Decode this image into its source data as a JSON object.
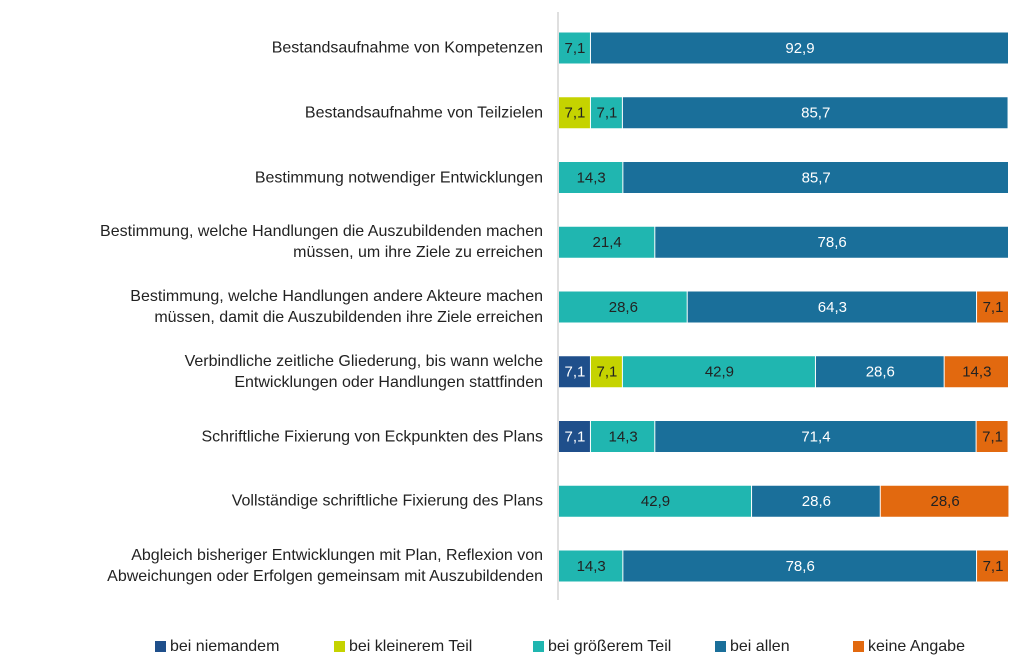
{
  "chart_data": {
    "type": "stacked-bar-horizontal",
    "categories": [
      "Bestandsaufnahme von Kompetenzen",
      "Bestandsaufnahme von Teilzielen",
      "Bestimmung notwendiger Entwicklungen",
      "Bestimmung, welche Handlungen die Auszubildenden machen\nmüssen, um ihre Ziele zu erreichen",
      "Bestimmung, welche Handlungen andere Akteure machen\nmüssen, damit die Auszubildenden ihre Ziele erreichen",
      "Verbindliche zeitliche Gliederung, bis wann welche\nEntwicklungen oder Handlungen stattfinden",
      "Schriftliche Fixierung von Eckpunkten des Plans",
      "Vollständige schriftliche Fixierung des Plans",
      "Abgleich bisheriger Entwicklungen mit Plan, Reflexion von\nAbweichungen oder Erfolgen gemeinsam mit Auszubildenden"
    ],
    "series": [
      {
        "name": "bei niemandem",
        "color": "#1f4f8b",
        "values": [
          null,
          null,
          null,
          null,
          null,
          7.1,
          7.1,
          null,
          null
        ],
        "value_labels": [
          null,
          null,
          null,
          null,
          null,
          "7,1",
          "7,1",
          null,
          null
        ]
      },
      {
        "name": "bei kleinerem Teil",
        "color": "#c5d300",
        "values": [
          null,
          7.1,
          null,
          null,
          null,
          7.1,
          null,
          null,
          null
        ],
        "value_labels": [
          null,
          "7,1",
          null,
          null,
          null,
          "7,1",
          null,
          null,
          null
        ]
      },
      {
        "name": "bei größerem Teil",
        "color": "#20b6b0",
        "values": [
          7.1,
          7.1,
          14.3,
          21.4,
          28.6,
          42.9,
          14.3,
          42.9,
          14.3
        ],
        "value_labels": [
          "7,1",
          "7,1",
          "14,3",
          "21,4",
          "28,6",
          "42,9",
          "14,3",
          "42,9",
          "14,3"
        ]
      },
      {
        "name": "bei allen",
        "color": "#1a6f9a",
        "values": [
          92.9,
          85.7,
          85.7,
          78.6,
          64.3,
          28.6,
          71.4,
          28.6,
          78.6
        ],
        "value_labels": [
          "92,9",
          "85,7",
          "85,7",
          "78,6",
          "64,3",
          "28,6",
          "71,4",
          "28,6",
          "78,6"
        ]
      },
      {
        "name": "keine Angabe",
        "color": "#e2690f",
        "values": [
          null,
          null,
          null,
          null,
          7.1,
          14.3,
          7.1,
          28.6,
          7.1
        ],
        "value_labels": [
          null,
          null,
          null,
          null,
          "7,1",
          "14,3",
          "7,1",
          "28,6",
          "7,1"
        ]
      }
    ],
    "xlim": [
      0,
      100
    ],
    "legend": "bottom"
  }
}
